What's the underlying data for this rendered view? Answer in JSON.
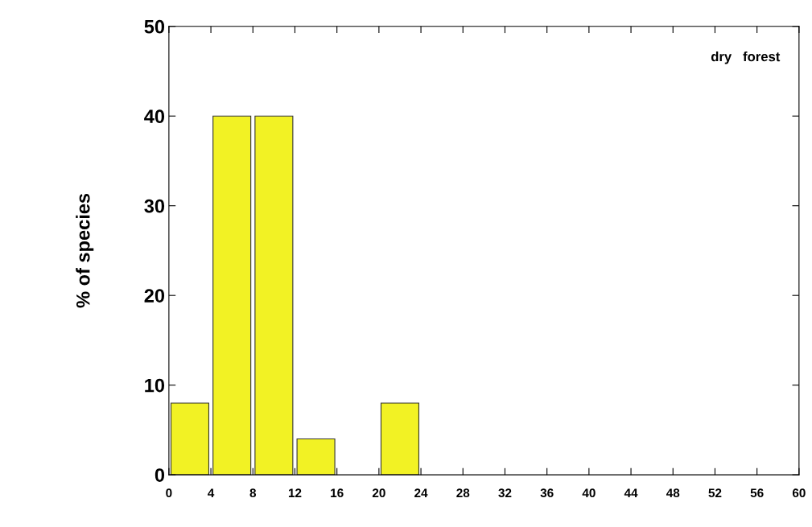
{
  "chart_data": {
    "type": "histogram",
    "bins": [
      0,
      4,
      8,
      12,
      16,
      20,
      24,
      28,
      32,
      36,
      40,
      44,
      48,
      52,
      56,
      60
    ],
    "values": [
      8,
      40,
      40,
      4,
      0,
      8,
      0,
      0,
      0,
      0,
      0,
      0,
      0,
      0,
      0
    ],
    "color": "#f2f224",
    "ylabel": "% of species",
    "annotations": [
      "dry   forest"
    ],
    "xlim": [
      0,
      60
    ],
    "xticks": [
      0,
      4,
      8,
      12,
      16,
      20,
      24,
      28,
      32,
      36,
      40,
      44,
      48,
      52,
      56,
      60
    ],
    "ylim": [
      0,
      50
    ],
    "yticks": [
      0,
      10,
      20,
      30,
      40,
      50
    ],
    "grid": false,
    "legend": false
  }
}
